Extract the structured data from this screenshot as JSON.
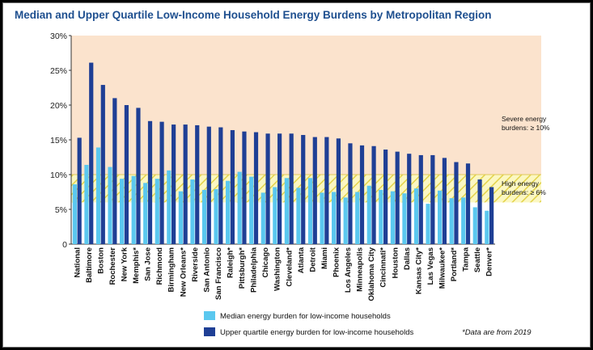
{
  "chart_data": {
    "type": "bar",
    "title": "Median and Upper Quartile Low-Income Household Energy Burdens by Metropolitan Region",
    "xlabel": "",
    "ylabel": "",
    "ylim": [
      0,
      30
    ],
    "yticks": [
      "0",
      "5%",
      "10%",
      "15%",
      "20%",
      "25%",
      "30%"
    ],
    "categories": [
      "National",
      "Baltimore",
      "Boston",
      "Rochester",
      "New York",
      "Memphis*",
      "San Jose",
      "Richmond",
      "Birmingham",
      "New Orleans*",
      "Riverside",
      "San Antonio",
      "San Francisco",
      "Raleigh*",
      "Pittsburgh*",
      "Philadelphia",
      "Chicago",
      "Washington",
      "Cleveland*",
      "Atlanta",
      "Detroit",
      "Miami",
      "Phoenix",
      "Los Angeles",
      "Minneapolis",
      "Oklahoma City",
      "Cincinnati*",
      "Houston",
      "Dallas",
      "Kansas City*",
      "Las Vegas",
      "Milwaukee*",
      "Portland*",
      "Tampa",
      "Seattle",
      "Denver*"
    ],
    "series": [
      {
        "name": "Median energy burden for low-income households",
        "color": "#5bc8ef",
        "values": [
          8.6,
          11.4,
          13.9,
          11.1,
          9.4,
          9.8,
          8.8,
          9.4,
          10.6,
          7.6,
          9.3,
          7.8,
          7.9,
          9.1,
          10.4,
          9.7,
          7.4,
          8.2,
          9.5,
          8.1,
          9.5,
          7.4,
          7.5,
          6.7,
          7.5,
          8.4,
          7.8,
          7.6,
          7.3,
          8.0,
          5.8,
          7.7,
          6.6,
          6.7,
          5.3,
          4.8
        ]
      },
      {
        "name": "Upper quartile energy burden for low-income households",
        "color": "#1f3f95",
        "values": [
          15.3,
          26.1,
          22.9,
          21.0,
          20.0,
          19.6,
          17.7,
          17.6,
          17.2,
          17.2,
          17.1,
          16.9,
          16.8,
          16.4,
          16.2,
          16.1,
          15.9,
          15.9,
          15.9,
          15.7,
          15.4,
          15.4,
          15.2,
          14.5,
          14.2,
          14.1,
          13.6,
          13.3,
          13.0,
          12.8,
          12.8,
          12.4,
          11.8,
          11.6,
          9.3,
          8.2
        ]
      }
    ],
    "bands": [
      {
        "label_line1": "Severe energy",
        "label_line2": "burdens: ≥ 10%",
        "from": 10,
        "to": 30,
        "color": "#fbe3cd"
      },
      {
        "label_line1": "High energy",
        "label_line2": "burdens: ≥ 6%",
        "from": 6,
        "to": 10,
        "color": "#f7f3b8"
      }
    ],
    "footnote": "*Data are from 2019"
  }
}
